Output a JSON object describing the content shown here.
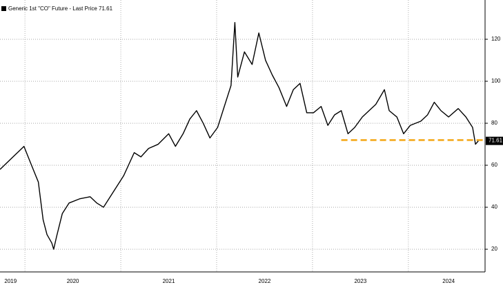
{
  "chart_data": {
    "type": "line",
    "legend_label": "Generic 1st \"CO\" Future - Last Price 71.61",
    "series": [
      {
        "name": "Generic 1st \"CO\" Future",
        "color": "#000000",
        "x": [
          2019.74,
          2019.99,
          2020.06,
          2020.14,
          2020.19,
          2020.23,
          2020.28,
          2020.3,
          2020.33,
          2020.39,
          2020.46,
          2020.57,
          2020.68,
          2020.75,
          2020.82,
          2020.89,
          2020.96,
          2021.03,
          2021.14,
          2021.21,
          2021.29,
          2021.39,
          2021.5,
          2021.57,
          2021.65,
          2021.72,
          2021.79,
          2021.86,
          2021.93,
          2022.01,
          2022.08,
          2022.15,
          2022.19,
          2022.22,
          2022.29,
          2022.37,
          2022.44,
          2022.51,
          2022.58,
          2022.65,
          2022.73,
          2022.8,
          2022.87,
          2022.94,
          2023.01,
          2023.09,
          2023.16,
          2023.23,
          2023.3,
          2023.37,
          2023.44,
          2023.52,
          2023.59,
          2023.66,
          2023.75,
          2023.8,
          2023.88,
          2023.95,
          2024.02,
          2024.13,
          2024.2,
          2024.27,
          2024.34,
          2024.42,
          2024.52,
          2024.6,
          2024.67,
          2024.7,
          2024.73
        ],
        "values": [
          58,
          69,
          61,
          52,
          34,
          27,
          23,
          20,
          26,
          37,
          42,
          44,
          45,
          42,
          40,
          45,
          50,
          55,
          66,
          64,
          68,
          70,
          75,
          69,
          75,
          82,
          86,
          80,
          73,
          78,
          88,
          98,
          128,
          102,
          114,
          108,
          123,
          110,
          103,
          97,
          88,
          96,
          99,
          85,
          85,
          88,
          79,
          84,
          86,
          75,
          78,
          83,
          86,
          89,
          96,
          86,
          83,
          75,
          79,
          81,
          84,
          90,
          86,
          83,
          87,
          83,
          78,
          70,
          71.61
        ]
      }
    ],
    "xlim": [
      2019.74,
      2024.8
    ],
    "xticks": [
      {
        "value": 2019.85,
        "label": "2019"
      },
      {
        "value": 2020.5,
        "label": "2020"
      },
      {
        "value": 2021.5,
        "label": "2021"
      },
      {
        "value": 2022.5,
        "label": "2022"
      },
      {
        "value": 2023.5,
        "label": "2023"
      },
      {
        "value": 2024.42,
        "label": "2024"
      }
    ],
    "xgrid": [
      2020,
      2021,
      2022,
      2023,
      2024
    ],
    "ylim": [
      9.2,
      138.7
    ],
    "yticks": [
      20,
      40,
      60,
      80,
      100,
      120
    ],
    "grid": true,
    "reference_line": {
      "value": 72,
      "x_start": 2023.3,
      "color": "#f5b335"
    }
  }
}
